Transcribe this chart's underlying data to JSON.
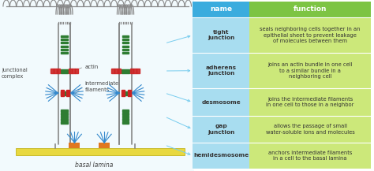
{
  "header_color_name": "#3aacde",
  "header_color_function": "#7dc443",
  "row_color_name": "#a8ddf0",
  "row_color_function": "#cce87a",
  "header_text_color": "#ffffff",
  "row_text_color": "#333333",
  "header_name": "name",
  "header_function": "function",
  "rows": [
    {
      "name": "tight\njunction",
      "function": "seals neighboring cells together in an\nepithelial sheet to prevent leakage\nof molecules between them"
    },
    {
      "name": "adherens\njunction",
      "function": "joins an actin bundle in one cell\nto a similar bundle in a\nneighboring cell"
    },
    {
      "name": "desmosome",
      "function": "joins the intermediate filaments\nin one cell to those in a neighbor"
    },
    {
      "name": "gap\njunction",
      "function": "allows the passage of small\nwater-soluble ions and molecules"
    },
    {
      "name": "hemidesmosome",
      "function": "anchors intermediate filaments\nin a cell to the basal lamina"
    }
  ],
  "basal_lamina_color": "#e8d840",
  "actin_color": "#cc2222",
  "green_color": "#2e7d32",
  "blue_color": "#3388cc",
  "orange_color": "#e07820",
  "cell_wall_color": "#888888",
  "bg_color": "#ffffff",
  "arrow_color": "#77ccee",
  "label_color": "#444444",
  "diag_bg": "#f2fafd"
}
